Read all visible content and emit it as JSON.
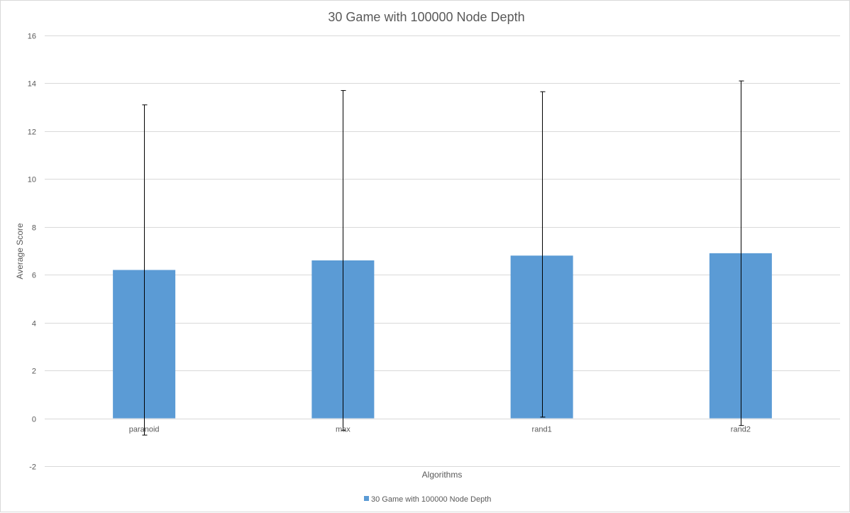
{
  "chart_data": {
    "type": "bar",
    "title": "30 Game with 100000 Node Depth",
    "xlabel": "Algorithms",
    "ylabel": "Average Score",
    "categories": [
      "paranoid",
      "max",
      "rand1",
      "rand2"
    ],
    "series": [
      {
        "name": "30 Game with 100000 Node Depth",
        "values": [
          6.2,
          6.6,
          6.8,
          6.9
        ],
        "error_low": [
          -0.7,
          -0.5,
          0.05,
          -0.3
        ],
        "error_high": [
          13.1,
          13.7,
          13.65,
          14.1
        ],
        "color": "#5b9bd5"
      }
    ],
    "ylim": [
      -2,
      16
    ],
    "yticks": [
      -2,
      0,
      2,
      4,
      6,
      8,
      10,
      12,
      14,
      16
    ],
    "grid": true,
    "legend": "bottom"
  }
}
